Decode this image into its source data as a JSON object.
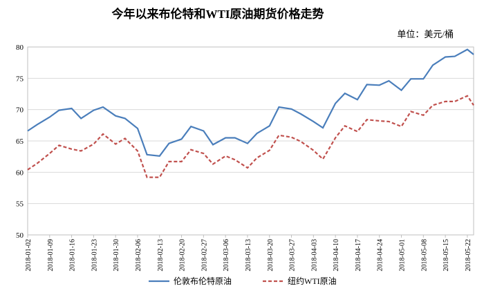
{
  "chart_data": {
    "type": "line",
    "title": "今年以来布伦特和WTI原油期货价格走势",
    "unit": "单位：美元/桶",
    "x": [
      "2018-01-02",
      "2018-01-05",
      "2018-01-09",
      "2018-01-12",
      "2018-01-16",
      "2018-01-19",
      "2018-01-23",
      "2018-01-26",
      "2018-01-30",
      "2018-02-02",
      "2018-02-06",
      "2018-02-09",
      "2018-02-13",
      "2018-02-16",
      "2018-02-20",
      "2018-02-23",
      "2018-02-27",
      "2018-03-02",
      "2018-03-06",
      "2018-03-09",
      "2018-03-13",
      "2018-03-16",
      "2018-03-20",
      "2018-03-23",
      "2018-03-27",
      "2018-03-30",
      "2018-04-03",
      "2018-04-06",
      "2018-04-10",
      "2018-04-13",
      "2018-04-17",
      "2018-04-20",
      "2018-04-24",
      "2018-04-27",
      "2018-05-01",
      "2018-05-04",
      "2018-05-08",
      "2018-05-11",
      "2018-05-15",
      "2018-05-18",
      "2018-05-22",
      "2018-05-24"
    ],
    "series": [
      {
        "name": "伦敦布伦特原油",
        "color": "#4a7ebb",
        "dashed": false,
        "values": [
          66.6,
          67.6,
          68.8,
          69.9,
          70.2,
          68.6,
          69.9,
          70.4,
          69.0,
          68.6,
          67.0,
          62.8,
          62.6,
          64.6,
          65.3,
          67.3,
          66.6,
          64.4,
          65.5,
          65.5,
          64.6,
          66.2,
          67.4,
          70.4,
          70.1,
          69.3,
          68.1,
          67.1,
          71.0,
          72.6,
          71.6,
          74.0,
          73.9,
          74.6,
          73.1,
          74.9,
          74.9,
          77.1,
          78.4,
          78.5,
          79.6,
          78.8
        ]
      },
      {
        "name": "纽约WTI原油",
        "color": "#c0504d",
        "dashed": true,
        "values": [
          60.4,
          61.4,
          63.0,
          64.3,
          63.7,
          63.4,
          64.5,
          66.1,
          64.5,
          65.4,
          63.4,
          59.2,
          59.2,
          61.7,
          61.7,
          63.6,
          63.0,
          61.3,
          62.6,
          62.0,
          60.7,
          62.3,
          63.5,
          65.9,
          65.6,
          64.9,
          63.5,
          62.1,
          65.5,
          67.4,
          66.5,
          68.4,
          68.2,
          68.1,
          67.3,
          69.7,
          69.1,
          70.7,
          71.3,
          71.3,
          72.2,
          70.7
        ]
      }
    ],
    "xlim": [
      "2018-01-02",
      "2018-05-24"
    ],
    "xticks": [
      "2018-01-02",
      "2018-01-09",
      "2018-01-16",
      "2018-01-23",
      "2018-01-30",
      "2018-02-06",
      "2018-02-13",
      "2018-02-20",
      "2018-02-27",
      "2018-03-06",
      "2018-03-13",
      "2018-03-20",
      "2018-03-27",
      "2018-04-03",
      "2018-04-10",
      "2018-04-17",
      "2018-04-24",
      "2018-05-01",
      "2018-05-08",
      "2018-05-15",
      "2018-05-22"
    ],
    "ylim": [
      50,
      80
    ],
    "yticks": [
      50,
      55,
      60,
      65,
      70,
      75,
      80
    ],
    "grid": true
  }
}
